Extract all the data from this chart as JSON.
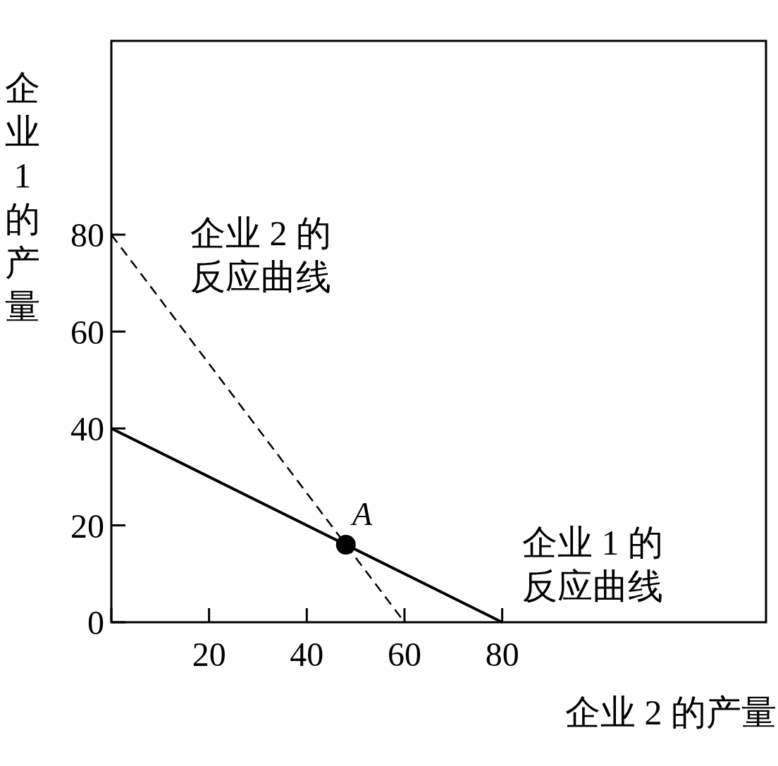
{
  "chart_data": {
    "type": "line",
    "xlabel": "企业 2 的产量",
    "ylabel": "企业1的产量",
    "xlim": [
      0,
      134
    ],
    "ylim": [
      0,
      120
    ],
    "xticks": [
      {
        "value": 0,
        "label": null
      },
      20,
      40,
      60,
      80
    ],
    "yticks": [
      0,
      20,
      40,
      60,
      80
    ],
    "series": [
      {
        "color": "#000000",
        "line_style": "solid",
        "marker": "none",
        "x": [
          0,
          80
        ],
        "values": [
          40,
          0
        ]
      },
      {
        "color": "#000000",
        "line_style": "dashed",
        "marker": "none",
        "x": [
          0,
          60
        ],
        "values": [
          80,
          0
        ]
      },
      {
        "type": "scatter",
        "color": "#000000",
        "marker": "circle",
        "x": [
          48
        ],
        "values": [
          16
        ]
      }
    ],
    "annotations": [
      "企业 2 的反应曲线",
      "企业 1 的反应曲线",
      "A"
    ],
    "grid": false
  }
}
